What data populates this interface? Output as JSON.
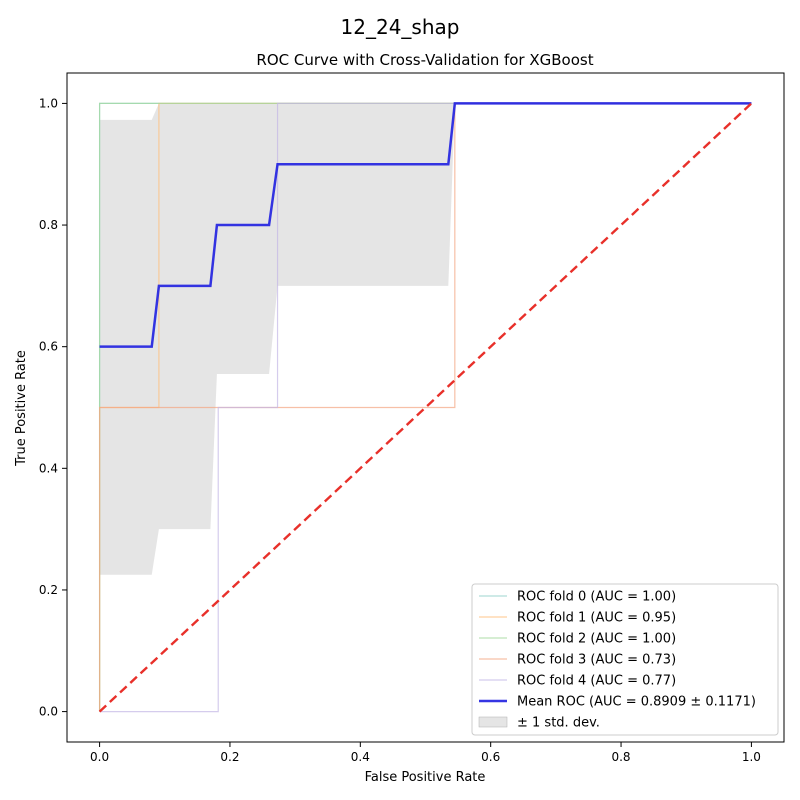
{
  "figure": {
    "suptitle": "12_24_shap"
  },
  "chart_data": {
    "type": "line",
    "title": "ROC Curve with Cross-Validation for XGBoost",
    "xlabel": "False Positive Rate",
    "ylabel": "True Positive Rate",
    "xlim": [
      -0.05,
      1.05
    ],
    "ylim": [
      -0.05,
      1.05
    ],
    "xticks": [
      "0.0",
      "0.2",
      "0.4",
      "0.6",
      "0.8",
      "1.0"
    ],
    "yticks": [
      "0.0",
      "0.2",
      "0.4",
      "0.6",
      "0.8",
      "1.0"
    ],
    "grid": false,
    "legend_position": "lower-right",
    "series": [
      {
        "name": "ROC fold 0 (AUC = 1.00)",
        "color": "#8ecfc9",
        "x": [
          0,
          0,
          1
        ],
        "y": [
          0,
          1,
          1
        ]
      },
      {
        "name": "ROC fold 1 (AUC = 0.95)",
        "color": "#ffbe7a",
        "x": [
          0,
          0,
          0.091,
          0.091,
          1
        ],
        "y": [
          0,
          0.5,
          0.5,
          1,
          1
        ]
      },
      {
        "name": "ROC fold 2 (AUC = 1.00)",
        "color": "#a1d99b",
        "x": [
          0,
          0,
          1
        ],
        "y": [
          0,
          1,
          1
        ]
      },
      {
        "name": "ROC fold 3 (AUC = 0.73)",
        "color": "#f4a582",
        "x": [
          0,
          0,
          0.545,
          0.545,
          1
        ],
        "y": [
          0,
          0.5,
          0.5,
          1,
          1
        ]
      },
      {
        "name": "ROC fold 4 (AUC = 0.77)",
        "color": "#c3b6e6",
        "x": [
          0,
          0.182,
          0.182,
          0.273,
          0.273,
          1
        ],
        "y": [
          0,
          0,
          0.5,
          0.5,
          1,
          1
        ]
      },
      {
        "name": "Mean ROC (AUC = 0.8909 ± 0.1171)",
        "color": "#1f1fe0",
        "x": [
          0,
          0.08,
          0.091,
          0.17,
          0.18,
          0.26,
          0.273,
          0.535,
          0.545,
          1
        ],
        "y": [
          0.6,
          0.6,
          0.7,
          0.7,
          0.8,
          0.8,
          0.9,
          0.9,
          1.0,
          1.0
        ]
      }
    ],
    "std_band": {
      "name": "± 1 std. dev.",
      "color": "#d3d3d3",
      "x": [
        0,
        0.08,
        0.091,
        0.17,
        0.18,
        0.26,
        0.273,
        0.535,
        0.545,
        1
      ],
      "lower": [
        0.225,
        0.225,
        0.3,
        0.3,
        0.555,
        0.555,
        0.7,
        0.7,
        1.0,
        1.0
      ],
      "upper": [
        0.973,
        0.973,
        1.0,
        1.0,
        1.0,
        1.0,
        1.0,
        1.0,
        1.0,
        1.0
      ]
    },
    "chance_line": {
      "color": "#e8302a",
      "x": [
        0,
        1
      ],
      "y": [
        0,
        1
      ]
    }
  }
}
